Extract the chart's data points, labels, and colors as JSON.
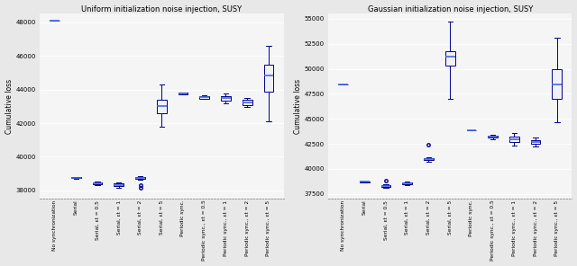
{
  "left_title": "Uniform initialization noise injection, SUSY",
  "right_title": "Gaussian initialization noise injection, SUSY",
  "ylabel": "Cumulative loss",
  "categories": [
    "No synchronization",
    "Serial",
    "Serial, εt = 0.5",
    "Serial, εt = 1",
    "Serial, εt = 2",
    "Serial, εt = 5",
    "Periodic sync.",
    "Periodic sync., εt = 0.5",
    "Periodic sync., εt = 1",
    "Periodic sync., εt = 2",
    "Periodic sync., εt = 5"
  ],
  "left": {
    "ylim": [
      37500,
      48500
    ],
    "yticks": [
      38000,
      40000,
      42000,
      44000,
      46000,
      48000
    ],
    "boxes": [
      {
        "med": 48100,
        "q1": 48100,
        "q3": 48100,
        "whislo": 48100,
        "whishi": 48100,
        "fliers": []
      },
      {
        "med": 38750,
        "q1": 38720,
        "q3": 38780,
        "whislo": 38710,
        "whishi": 38800,
        "fliers": []
      },
      {
        "med": 38430,
        "q1": 38370,
        "q3": 38490,
        "whislo": 38330,
        "whishi": 38540,
        "fliers": []
      },
      {
        "med": 38320,
        "q1": 38240,
        "q3": 38400,
        "whislo": 38180,
        "whishi": 38460,
        "fliers": []
      },
      {
        "med": 38760,
        "q1": 38700,
        "q3": 38820,
        "whislo": 38640,
        "whishi": 38870,
        "fliers": [
          38300,
          38150
        ]
      },
      {
        "med": 43000,
        "q1": 42600,
        "q3": 43400,
        "whislo": 41800,
        "whishi": 44300,
        "fliers": []
      },
      {
        "med": 43760,
        "q1": 43720,
        "q3": 43800,
        "whislo": 43700,
        "whishi": 43830,
        "fliers": []
      },
      {
        "med": 43540,
        "q1": 43470,
        "q3": 43610,
        "whislo": 43420,
        "whishi": 43670,
        "fliers": []
      },
      {
        "med": 43480,
        "q1": 43340,
        "q3": 43620,
        "whislo": 43200,
        "whishi": 43760,
        "fliers": []
      },
      {
        "med": 43230,
        "q1": 43080,
        "q3": 43370,
        "whislo": 42980,
        "whishi": 43480,
        "fliers": []
      },
      {
        "med": 44850,
        "q1": 43850,
        "q3": 45500,
        "whislo": 42100,
        "whishi": 46600,
        "fliers": []
      }
    ]
  },
  "right": {
    "ylim": [
      37000,
      55500
    ],
    "yticks": [
      37500,
      40000,
      42500,
      45000,
      47500,
      50000,
      52500,
      55000
    ],
    "boxes": [
      {
        "med": 48400,
        "q1": 48400,
        "q3": 48400,
        "whislo": 48400,
        "whishi": 48400,
        "fliers": []
      },
      {
        "med": 38700,
        "q1": 38670,
        "q3": 38730,
        "whislo": 38660,
        "whishi": 38740,
        "fliers": []
      },
      {
        "med": 38280,
        "q1": 38180,
        "q3": 38360,
        "whislo": 38080,
        "whishi": 38470,
        "fliers": [
          38800
        ]
      },
      {
        "med": 38560,
        "q1": 38460,
        "q3": 38650,
        "whislo": 38360,
        "whishi": 38760,
        "fliers": []
      },
      {
        "med": 41000,
        "q1": 40920,
        "q3": 41080,
        "whislo": 40720,
        "whishi": 41180,
        "fliers": [
          42450
        ]
      },
      {
        "med": 51200,
        "q1": 50300,
        "q3": 51800,
        "whislo": 47000,
        "whishi": 54700,
        "fliers": []
      },
      {
        "med": 43850,
        "q1": 43850,
        "q3": 43850,
        "whislo": 43850,
        "whishi": 43850,
        "fliers": []
      },
      {
        "med": 43200,
        "q1": 43100,
        "q3": 43300,
        "whislo": 43000,
        "whishi": 43400,
        "fliers": []
      },
      {
        "med": 43000,
        "q1": 42700,
        "q3": 43250,
        "whislo": 42300,
        "whishi": 43550,
        "fliers": []
      },
      {
        "med": 42680,
        "q1": 42500,
        "q3": 42860,
        "whislo": 42200,
        "whishi": 43100,
        "fliers": []
      },
      {
        "med": 48400,
        "q1": 47000,
        "q3": 50000,
        "whislo": 44700,
        "whishi": 53100,
        "fliers": []
      }
    ]
  },
  "box_facecolor": "#f0f0f8",
  "box_edgecolor": "#00008b",
  "median_color": "#4169e1",
  "flier_color": "#00008b",
  "background_color": "#e8e8e8",
  "axes_facecolor": "#f5f5f5",
  "grid_color": "#ffffff",
  "title_fontsize": 6.0,
  "label_fontsize": 5.5,
  "tick_fontsize": 5.0,
  "xtick_fontsize": 4.2
}
